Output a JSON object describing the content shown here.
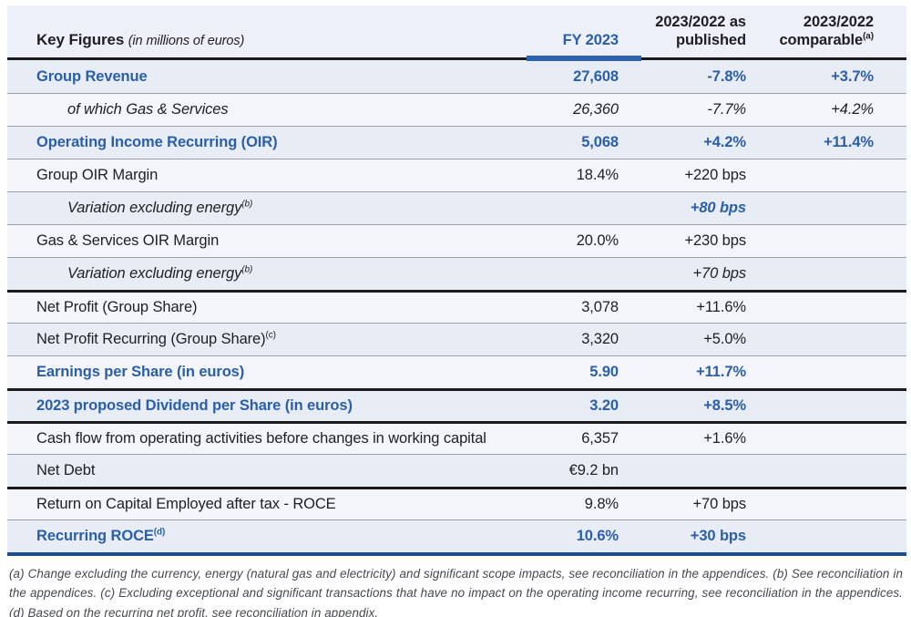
{
  "header": {
    "col1_title": "Key Figures",
    "col1_subtitle": "(in millions of euros)",
    "col2": "FY 2023",
    "col3": "2023/2022 as published",
    "col4": "2023/2022 comparable",
    "col4_sup": "(a)"
  },
  "colors": {
    "accent_blue": "#2a5fa8",
    "bar_blue": "#2e63ad",
    "bottom_rule_blue": "#1d4d8d",
    "dark_line": "#1a1a1f",
    "thin_line": "#99a0ad",
    "row_odd": "#e8ecf5",
    "row_even": "#f3f5fa",
    "header_bg": "#edf0f8",
    "text_dark": "#1e1f23",
    "footnote_color": "#46494f"
  },
  "rows": [
    {
      "label": "Group Revenue",
      "sup": "",
      "style": "blue",
      "indent": false,
      "thick_top": false,
      "fy2023": "27,608",
      "published": "-7.8%",
      "comparable": "+3.7%",
      "published_style": ""
    },
    {
      "label": "of which Gas & Services",
      "sup": "",
      "style": "italic",
      "indent": true,
      "thick_top": false,
      "fy2023": "26,360",
      "published": "-7.7%",
      "comparable": "+4.2%",
      "published_style": ""
    },
    {
      "label": "Operating Income Recurring (OIR)",
      "sup": "",
      "style": "blue",
      "indent": false,
      "thick_top": false,
      "fy2023": "5,068",
      "published": "+4.2%",
      "comparable": "+11.4%",
      "published_style": ""
    },
    {
      "label": "Group OIR Margin",
      "sup": "",
      "style": "normal",
      "indent": false,
      "thick_top": false,
      "fy2023": "18.4%",
      "published": "+220 bps",
      "comparable": "",
      "published_style": ""
    },
    {
      "label": "Variation excluding energy",
      "sup": "(b)",
      "style": "italic",
      "indent": true,
      "thick_top": false,
      "fy2023": "",
      "published": "+80 bps",
      "comparable": "",
      "published_style": "blue-italic"
    },
    {
      "label": "Gas & Services OIR Margin",
      "sup": "",
      "style": "normal",
      "indent": false,
      "thick_top": false,
      "fy2023": "20.0%",
      "published": "+230 bps",
      "comparable": "",
      "published_style": ""
    },
    {
      "label": "Variation excluding energy",
      "sup": "(b)",
      "style": "italic",
      "indent": true,
      "thick_top": false,
      "fy2023": "",
      "published": "+70 bps",
      "comparable": "",
      "published_style": ""
    },
    {
      "label": "Net Profit (Group Share)",
      "sup": "",
      "style": "normal",
      "indent": false,
      "thick_top": true,
      "fy2023": "3,078",
      "published": "+11.6%",
      "comparable": "",
      "published_style": ""
    },
    {
      "label": "Net Profit Recurring (Group Share)",
      "sup": "(c)",
      "style": "normal",
      "indent": false,
      "thick_top": false,
      "fy2023": "3,320",
      "published": "+5.0%",
      "comparable": "",
      "published_style": ""
    },
    {
      "label": "Earnings per Share (in euros)",
      "sup": "",
      "style": "blue",
      "indent": false,
      "thick_top": false,
      "fy2023": "5.90",
      "published": "+11.7%",
      "comparable": "",
      "published_style": ""
    },
    {
      "label": "2023 proposed Dividend per Share (in euros)",
      "sup": "",
      "style": "blue",
      "indent": false,
      "thick_top": true,
      "fy2023": "3.20",
      "published": "+8.5%",
      "comparable": "",
      "published_style": ""
    },
    {
      "label": "Cash flow from operating activities before changes in working capital",
      "sup": "",
      "style": "normal",
      "indent": false,
      "thick_top": true,
      "fy2023": "6,357",
      "published": "+1.6%",
      "comparable": "",
      "published_style": ""
    },
    {
      "label": "Net Debt",
      "sup": "",
      "style": "normal",
      "indent": false,
      "thick_top": false,
      "fy2023": "€9.2 bn",
      "published": "",
      "comparable": "",
      "published_style": ""
    },
    {
      "label": "Return on Capital Employed after tax - ROCE",
      "sup": "",
      "style": "normal",
      "indent": false,
      "thick_top": true,
      "fy2023": "9.8%",
      "published": "+70 bps",
      "comparable": "",
      "published_style": ""
    },
    {
      "label": "Recurring ROCE",
      "sup": "(d)",
      "style": "blue",
      "indent": false,
      "thick_top": false,
      "fy2023": "10.6%",
      "published": "+30 bps",
      "comparable": "",
      "published_style": ""
    }
  ],
  "footnotes": "(a) Change excluding the currency, energy (natural gas and electricity) and significant scope impacts, see reconciliation in the appendices. (b) See reconciliation in the appendices. (c) Excluding exceptional and significant transactions that have no impact on the operating income recurring, see reconciliation in the appendices. (d) Based on the recurring net profit, see reconciliation in appendix."
}
